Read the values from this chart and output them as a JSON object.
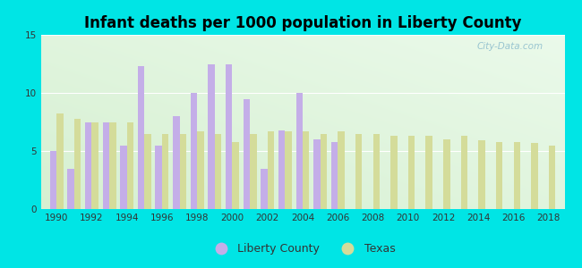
{
  "title": "Infant deaths per 1000 population in Liberty County",
  "years": [
    1990,
    1991,
    1992,
    1993,
    1994,
    1995,
    1996,
    1997,
    1998,
    1999,
    2000,
    2001,
    2002,
    2003,
    2004,
    2005,
    2006,
    2007,
    2008,
    2009,
    2010,
    2011,
    2012,
    2013,
    2014,
    2015,
    2016,
    2017,
    2018
  ],
  "liberty_county": [
    5.0,
    3.5,
    7.5,
    7.5,
    5.5,
    12.3,
    5.5,
    8.0,
    10.0,
    12.5,
    12.5,
    9.5,
    3.5,
    6.8,
    10.0,
    6.0,
    5.8,
    0.0,
    0.0,
    0.0,
    0.0,
    0.0,
    0.0,
    0.0,
    0.0,
    0.0,
    0.0,
    0.0,
    0.0
  ],
  "texas": [
    8.2,
    7.8,
    7.5,
    7.5,
    7.5,
    6.5,
    6.5,
    6.5,
    6.7,
    6.5,
    5.8,
    6.5,
    6.7,
    6.7,
    6.7,
    6.5,
    6.7,
    6.5,
    6.5,
    6.3,
    6.3,
    6.3,
    6.0,
    6.3,
    5.9,
    5.8,
    5.8,
    5.7,
    5.5
  ],
  "liberty_color": "#c4aee8",
  "texas_color": "#d4dc9a",
  "facecolor_outer": "#00e5e5",
  "ylim": [
    0,
    15
  ],
  "yticks": [
    0,
    5,
    10,
    15
  ],
  "title_fontsize": 12,
  "legend_labels": [
    "Liberty County",
    "Texas"
  ],
  "watermark": "City-Data.com",
  "bar_width": 0.38
}
